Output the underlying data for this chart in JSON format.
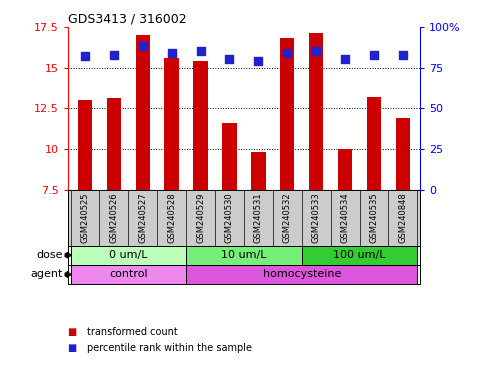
{
  "title": "GDS3413 / 316002",
  "samples": [
    "GSM240525",
    "GSM240526",
    "GSM240527",
    "GSM240528",
    "GSM240529",
    "GSM240530",
    "GSM240531",
    "GSM240532",
    "GSM240533",
    "GSM240534",
    "GSM240535",
    "GSM240848"
  ],
  "transformed_count": [
    13.0,
    13.1,
    17.0,
    15.6,
    15.4,
    11.6,
    9.8,
    16.8,
    17.1,
    10.0,
    13.2,
    11.9
  ],
  "percentile_rank": [
    82,
    83,
    88,
    84,
    85,
    80,
    79,
    84,
    85,
    80,
    83,
    83
  ],
  "ylim_left": [
    7.5,
    17.5
  ],
  "ylim_right": [
    0,
    100
  ],
  "yticks_left": [
    7.5,
    10.0,
    12.5,
    15.0,
    17.5
  ],
  "ytick_labels_left": [
    "7.5",
    "10",
    "12.5",
    "15",
    "17.5"
  ],
  "yticks_right": [
    0,
    25,
    50,
    75,
    100
  ],
  "ytick_labels_right": [
    "0",
    "25",
    "50",
    "75",
    "100%"
  ],
  "bar_color": "#cc0000",
  "dot_color": "#2222cc",
  "plot_bg": "#ffffff",
  "dose_groups": [
    {
      "label": "0 um/L",
      "start": 0,
      "end": 3,
      "color": "#bbffbb"
    },
    {
      "label": "10 um/L",
      "start": 4,
      "end": 7,
      "color": "#77ee77"
    },
    {
      "label": "100 um/L",
      "start": 8,
      "end": 11,
      "color": "#33cc33"
    }
  ],
  "agent_groups": [
    {
      "label": "control",
      "start": 0,
      "end": 3,
      "color": "#ee88ee"
    },
    {
      "label": "homocysteine",
      "start": 4,
      "end": 11,
      "color": "#dd55dd"
    }
  ],
  "dose_label": "dose",
  "agent_label": "agent",
  "legend_items": [
    {
      "label": "transformed count",
      "color": "#cc0000"
    },
    {
      "label": "percentile rank within the sample",
      "color": "#2222cc"
    }
  ],
  "bar_width": 0.5,
  "dot_size": 30,
  "xtick_bg": "#cccccc",
  "xtick_fontsize": 6.0,
  "row_label_fontsize": 8,
  "row_content_fontsize": 8
}
